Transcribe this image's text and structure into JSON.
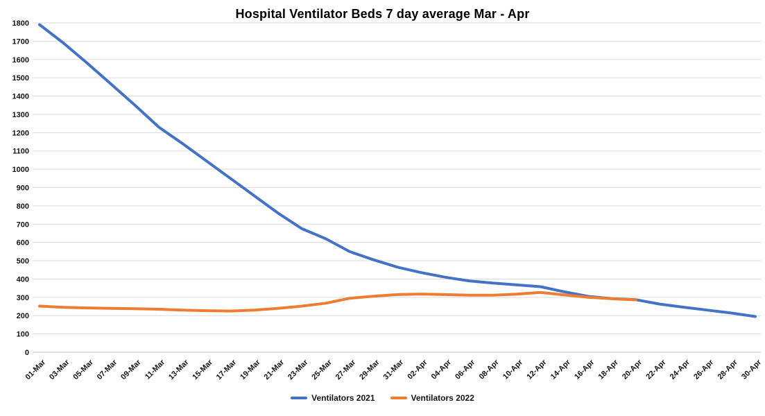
{
  "chart_data": {
    "type": "line",
    "title": "Hospital Ventilator Beds 7 day average Mar - Apr",
    "categories": [
      "01-Mar",
      "03-Mar",
      "05-Mar",
      "07-Mar",
      "09-Mar",
      "11-Mar",
      "13-Mar",
      "15-Mar",
      "17-Mar",
      "19-Mar",
      "21-Mar",
      "23-Mar",
      "25-Mar",
      "27-Mar",
      "29-Mar",
      "31-Mar",
      "02-Apr",
      "04-Apr",
      "06-Apr",
      "08-Apr",
      "10-Apr",
      "12-Apr",
      "14-Apr",
      "16-Apr",
      "18-Apr",
      "20-Apr",
      "22-Apr",
      "24-Apr",
      "26-Apr",
      "28-Apr",
      "30-Apr"
    ],
    "series": [
      {
        "name": "Ventilators 2021",
        "color": "#4472C4",
        "values": [
          1790,
          1690,
          1580,
          1465,
          1350,
          1230,
          1140,
          1045,
          950,
          855,
          760,
          675,
          620,
          550,
          505,
          465,
          435,
          410,
          390,
          378,
          368,
          358,
          330,
          305,
          293,
          287,
          263,
          246,
          230,
          214,
          195
        ]
      },
      {
        "name": "Ventilators 2022",
        "color": "#ED7D31",
        "values": [
          252,
          245,
          242,
          240,
          238,
          235,
          230,
          227,
          225,
          230,
          240,
          252,
          268,
          295,
          306,
          315,
          318,
          315,
          312,
          312,
          317,
          327,
          313,
          300,
          292,
          286,
          null,
          null,
          null,
          null,
          null
        ]
      }
    ],
    "y_axis": {
      "min": 0,
      "max": 1800,
      "step": 100,
      "tick_labels": [
        "0",
        "100",
        "200",
        "300",
        "400",
        "500",
        "600",
        "700",
        "800",
        "900",
        "1000",
        "1100",
        "1200",
        "1300",
        "1400",
        "1500",
        "1600",
        "1700",
        "1800"
      ]
    },
    "x_axis": {
      "label_rotation_deg": 45
    },
    "legend_position": "bottom",
    "grid": true,
    "colors": {
      "gridline": "#D9D9D9",
      "axis_line": "#BFBFBF",
      "tick_text": "#111111",
      "title_text": "#000000"
    }
  }
}
